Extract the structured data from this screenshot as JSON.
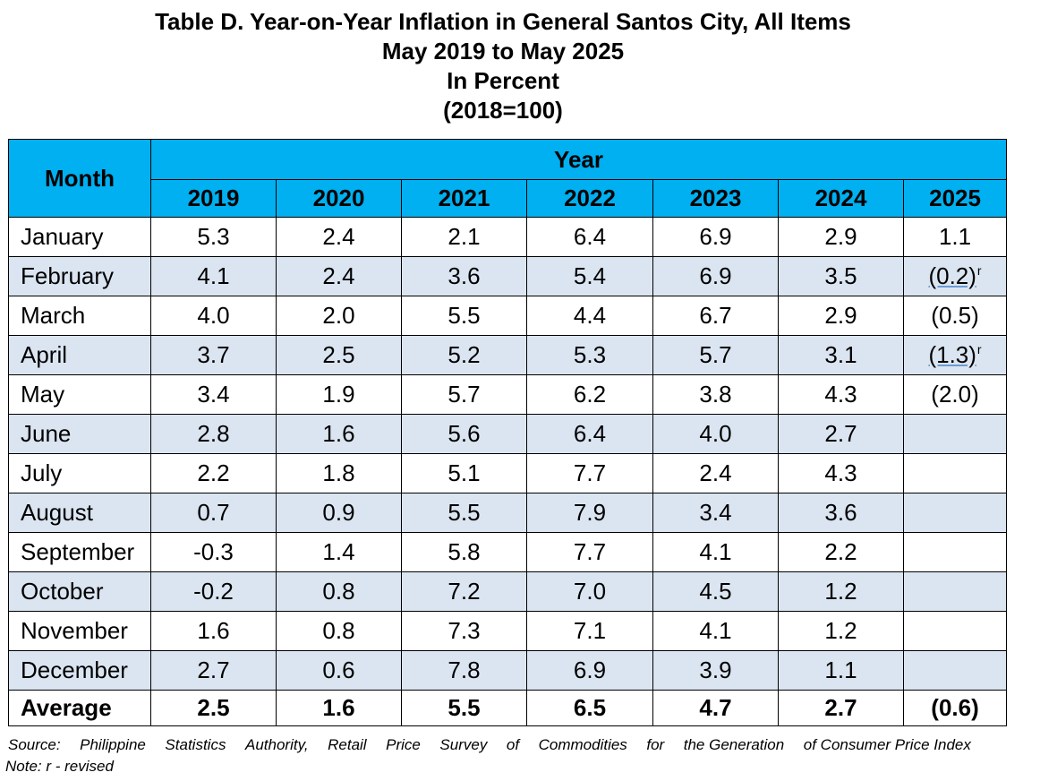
{
  "title": {
    "line1": "Table D. Year-on-Year Inflation in General Santos City, All Items",
    "line2": "May 2019 to May 2025",
    "line3": "In Percent",
    "line4": "(2018=100)"
  },
  "table": {
    "month_header": "Month",
    "year_header": "Year",
    "years": [
      "2019",
      "2020",
      "2021",
      "2022",
      "2023",
      "2024",
      "2025"
    ],
    "rows": [
      {
        "month": "January",
        "values": [
          "5.3",
          "2.4",
          "2.1",
          "6.4",
          "6.9",
          "2.9",
          "1.1"
        ]
      },
      {
        "month": "February",
        "values": [
          "4.1",
          "2.4",
          "3.6",
          "5.4",
          "6.9",
          "3.5",
          "(0.2)"
        ],
        "mark_2025": "r"
      },
      {
        "month": "March",
        "values": [
          "4.0",
          "2.0",
          "5.5",
          "4.4",
          "6.7",
          "2.9",
          "(0.5)"
        ]
      },
      {
        "month": "April",
        "values": [
          "3.7",
          "2.5",
          "5.2",
          "5.3",
          "5.7",
          "3.1",
          "(1.3)"
        ],
        "mark_2025": "r"
      },
      {
        "month": "May",
        "values": [
          "3.4",
          "1.9",
          "5.7",
          "6.2",
          "3.8",
          "4.3",
          "(2.0)"
        ]
      },
      {
        "month": "June",
        "values": [
          "2.8",
          "1.6",
          "5.6",
          "6.4",
          "4.0",
          "2.7",
          ""
        ]
      },
      {
        "month": "July",
        "values": [
          "2.2",
          "1.8",
          "5.1",
          "7.7",
          "2.4",
          "4.3",
          ""
        ]
      },
      {
        "month": "August",
        "values": [
          "0.7",
          "0.9",
          "5.5",
          "7.9",
          "3.4",
          "3.6",
          ""
        ]
      },
      {
        "month": "September",
        "values": [
          "-0.3",
          "1.4",
          "5.8",
          "7.7",
          "4.1",
          "2.2",
          ""
        ]
      },
      {
        "month": "October",
        "values": [
          "-0.2",
          "0.8",
          "7.2",
          "7.0",
          "4.5",
          "1.2",
          ""
        ]
      },
      {
        "month": "November",
        "values": [
          "1.6",
          "0.8",
          "7.3",
          "7.1",
          "4.1",
          "1.2",
          ""
        ]
      },
      {
        "month": "December",
        "values": [
          "2.7",
          "0.6",
          "7.8",
          "6.9",
          "3.9",
          "1.1",
          ""
        ]
      }
    ],
    "average": {
      "label": "Average",
      "values": [
        "2.5",
        "1.6",
        "5.5",
        "6.5",
        "4.7",
        "2.7",
        "(0.6)"
      ]
    }
  },
  "footer": {
    "source_words": [
      "Source:",
      "Philippine",
      "Statistics",
      "Authority,",
      "Retail",
      "Price",
      "Survey",
      "of",
      "Commodities",
      "for",
      "the Generation",
      "of Consumer Price Index"
    ],
    "note": "Note: r - revised"
  },
  "colors": {
    "header_bg": "#00b0f0",
    "shaded_row_bg": "#dbe5f1"
  }
}
